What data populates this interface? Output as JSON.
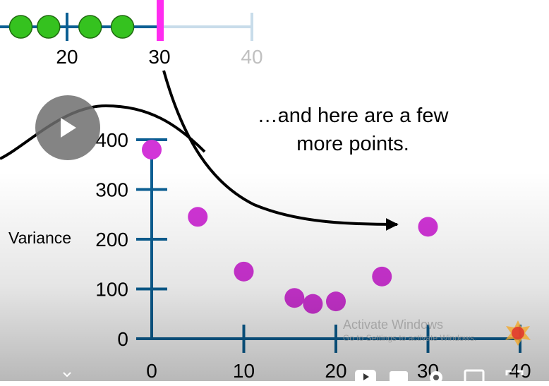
{
  "player": {
    "annotation": [
      "…and here are a few",
      "more points."
    ],
    "watermark_line1": "Activate Windows",
    "watermark_line2": "Go to Settings to activate Windows."
  },
  "colors": {
    "axis": "#0b5f93",
    "point": "#d235d8",
    "green": "#35c21f",
    "highlight": "#ff2bf0",
    "faded_axis": "#c8dcea",
    "faded_text": "#c0c0c0"
  },
  "top_axis": {
    "tick_labels": [
      "20",
      "30",
      "40"
    ],
    "tick_values": [
      20,
      30,
      40
    ],
    "green_points": [
      15,
      18,
      22.5,
      26
    ],
    "highlight_value": 30
  },
  "chart_data": {
    "type": "scatter",
    "title": "",
    "xlabel": "",
    "ylabel": "Variance",
    "xlim": [
      0,
      40
    ],
    "ylim": [
      0,
      400
    ],
    "x_ticks": [
      0,
      10,
      20,
      30,
      40
    ],
    "y_ticks": [
      0,
      100,
      200,
      300,
      400
    ],
    "x_tick_labels": [
      "0",
      "10",
      "20",
      "30",
      "40"
    ],
    "y_tick_labels": [
      "0",
      "100",
      "200",
      "300",
      "400"
    ],
    "grid": false,
    "legend": "none",
    "points": [
      {
        "x": 0,
        "y": 380
      },
      {
        "x": 5,
        "y": 245
      },
      {
        "x": 10,
        "y": 135
      },
      {
        "x": 15.5,
        "y": 82
      },
      {
        "x": 17.5,
        "y": 70
      },
      {
        "x": 20,
        "y": 75
      },
      {
        "x": 25,
        "y": 125
      },
      {
        "x": 30,
        "y": 225
      }
    ]
  }
}
